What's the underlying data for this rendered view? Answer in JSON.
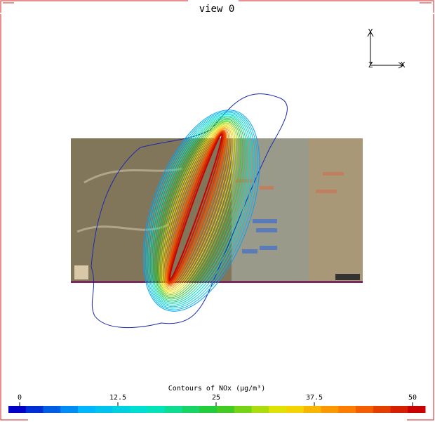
{
  "view": {
    "title": "view 0"
  },
  "axes_gizmo": {
    "y_label": "Y",
    "x_label": "X",
    "z_label": "Z"
  },
  "colorbar": {
    "title": "Contours of NOx (μg/m³)",
    "lim": [
      0,
      50
    ],
    "ticks": [
      0,
      12.5,
      25,
      37.5,
      50
    ]
  }
}
